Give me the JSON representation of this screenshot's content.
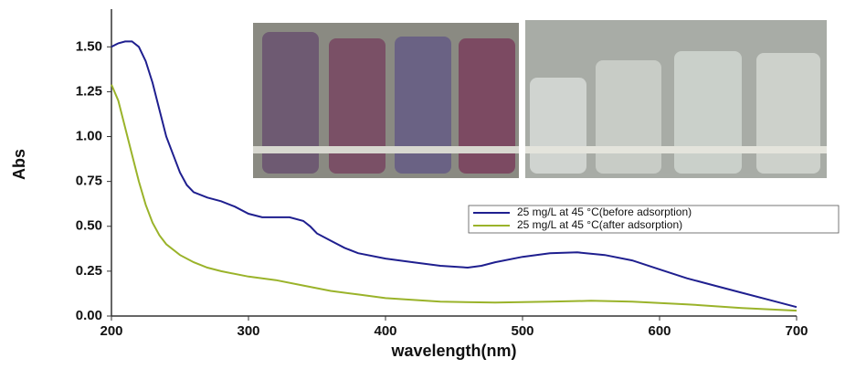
{
  "chart_data": {
    "type": "line",
    "xlabel": "wavelength(nm)",
    "ylabel": "Abs",
    "xlim": [
      200,
      700
    ],
    "xticks": [
      200,
      300,
      400,
      500,
      600,
      700
    ],
    "ylim": [
      0,
      1.7
    ],
    "yticks": [
      {
        "value": 0,
        "label": "0.00"
      },
      {
        "value": 0.25,
        "label": "0.25"
      },
      {
        "value": 0.5,
        "label": "0.50"
      },
      {
        "value": 0.75,
        "label": "0.75"
      },
      {
        "value": 1,
        "label": "1.00"
      },
      {
        "value": 1.25,
        "label": "1.25"
      },
      {
        "value": 1.5,
        "label": "1.50"
      }
    ],
    "legend": "right",
    "series": [
      {
        "name": "25 mg/L at 45 °C(before adsorption)",
        "color": "#1f1f8f",
        "x": [
          200,
          205,
          210,
          215,
          220,
          225,
          230,
          235,
          240,
          245,
          250,
          255,
          260,
          270,
          280,
          290,
          300,
          310,
          320,
          330,
          340,
          345,
          350,
          360,
          370,
          380,
          400,
          420,
          440,
          460,
          470,
          480,
          500,
          520,
          540,
          560,
          580,
          600,
          620,
          640,
          660,
          680,
          700
        ],
        "values": [
          1.5,
          1.52,
          1.53,
          1.53,
          1.5,
          1.42,
          1.3,
          1.15,
          1.0,
          0.9,
          0.8,
          0.73,
          0.69,
          0.66,
          0.64,
          0.61,
          0.57,
          0.55,
          0.55,
          0.55,
          0.53,
          0.5,
          0.46,
          0.42,
          0.38,
          0.35,
          0.32,
          0.3,
          0.28,
          0.27,
          0.28,
          0.3,
          0.33,
          0.35,
          0.355,
          0.34,
          0.31,
          0.26,
          0.21,
          0.17,
          0.13,
          0.09,
          0.05
        ]
      },
      {
        "name": "25 mg/L at 45 °C(after adsorption)",
        "color": "#9ab32a",
        "x": [
          200,
          205,
          210,
          215,
          220,
          225,
          230,
          235,
          240,
          250,
          260,
          270,
          280,
          300,
          320,
          340,
          360,
          380,
          400,
          440,
          480,
          520,
          550,
          580,
          620,
          660,
          700
        ],
        "values": [
          1.29,
          1.2,
          1.05,
          0.9,
          0.75,
          0.62,
          0.52,
          0.45,
          0.4,
          0.34,
          0.3,
          0.27,
          0.25,
          0.22,
          0.2,
          0.17,
          0.14,
          0.12,
          0.1,
          0.08,
          0.075,
          0.08,
          0.085,
          0.08,
          0.065,
          0.045,
          0.03
        ]
      }
    ]
  }
}
